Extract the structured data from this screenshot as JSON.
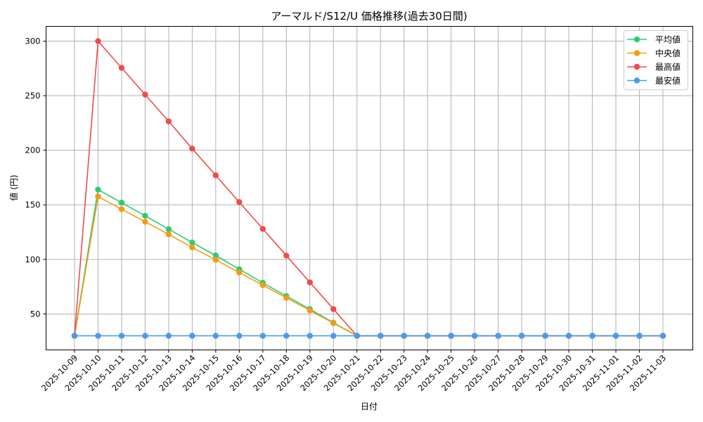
{
  "chart_data": {
    "type": "line",
    "title": "アーマルド/S12/U 価格推移(過去30日間)",
    "xlabel": "日付",
    "ylabel": "値 (円)",
    "ylim": [
      17.1,
      313.5
    ],
    "yticks": [
      50,
      100,
      150,
      200,
      250,
      300
    ],
    "grid": true,
    "legend_position": "upper right",
    "categories": [
      "2025-10-09",
      "2025-10-10",
      "2025-10-11",
      "2025-10-12",
      "2025-10-13",
      "2025-10-14",
      "2025-10-15",
      "2025-10-16",
      "2025-10-17",
      "2025-10-18",
      "2025-10-19",
      "2025-10-20",
      "2025-10-21",
      "2025-10-22",
      "2025-10-23",
      "2025-10-24",
      "2025-10-25",
      "2025-10-26",
      "2025-10-27",
      "2025-10-28",
      "2025-10-29",
      "2025-10-30",
      "2025-10-31",
      "2025-11-01",
      "2025-11-02",
      "2025-11-03"
    ],
    "series": [
      {
        "name": "平均値",
        "color": "#2ecc71",
        "values": [
          30,
          164,
          152,
          140,
          127.7,
          115.5,
          103.6,
          91,
          78.6,
          66.4,
          54.5,
          42,
          30,
          30,
          30,
          30,
          30,
          30,
          30,
          30,
          30,
          30,
          30,
          30,
          30,
          30
        ]
      },
      {
        "name": "中央値",
        "color": "#f39c12",
        "values": [
          30,
          157.6,
          146,
          134.5,
          123,
          111,
          99.6,
          88,
          76.4,
          64.8,
          53.2,
          41.6,
          30,
          30,
          30,
          30,
          30,
          30,
          30,
          30,
          30,
          30,
          30,
          30,
          30,
          30
        ]
      },
      {
        "name": "最高値",
        "color": "#f04b4b",
        "values": [
          30,
          300,
          275.5,
          251,
          226.5,
          201.5,
          177,
          152.5,
          128,
          103.5,
          79,
          54.5,
          30,
          30,
          30,
          30,
          30,
          30,
          30,
          30,
          30,
          30,
          30,
          30,
          30,
          30
        ]
      },
      {
        "name": "最安値",
        "color": "#4a9af5",
        "values": [
          30,
          30,
          30,
          30,
          30,
          30,
          30,
          30,
          30,
          30,
          30,
          30,
          30,
          30,
          30,
          30,
          30,
          30,
          30,
          30,
          30,
          30,
          30,
          30,
          30,
          30
        ]
      }
    ]
  }
}
